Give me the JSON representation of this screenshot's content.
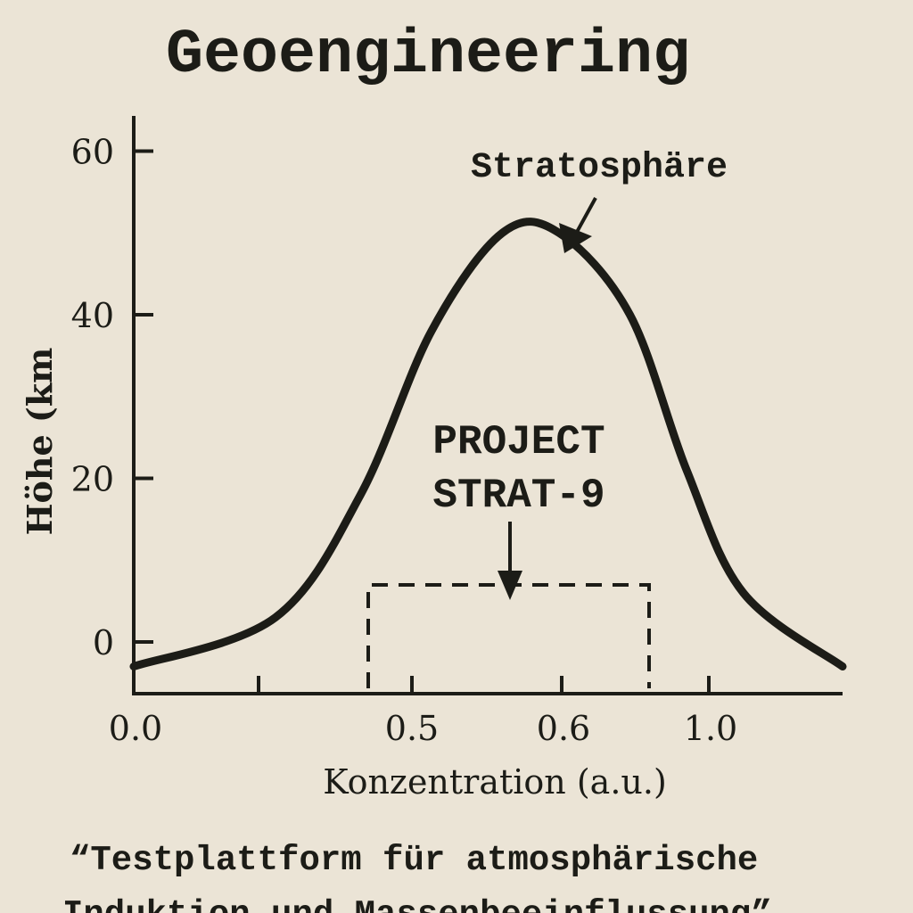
{
  "chart_data": {
    "type": "line",
    "title": "Geoengineering",
    "xlabel": "Konzentration (a.u.)",
    "ylabel": "Höhe (km",
    "x_tick_labels": [
      "0.0",
      "0.5",
      "0.6",
      "1.0"
    ],
    "y_ticks": [
      0,
      20,
      40,
      60
    ],
    "ylim": [
      -6,
      66
    ],
    "series": [
      {
        "points": [
          {
            "x": 0.0,
            "y": -3
          },
          {
            "x": 0.2,
            "y": 3
          },
          {
            "x": 0.32,
            "y": 18
          },
          {
            "x": 0.42,
            "y": 38
          },
          {
            "x": 0.52,
            "y": 50
          },
          {
            "x": 0.6,
            "y": 50
          },
          {
            "x": 0.7,
            "y": 40
          },
          {
            "x": 0.78,
            "y": 21
          },
          {
            "x": 0.86,
            "y": 6
          },
          {
            "x": 1.0,
            "y": -3
          }
        ]
      }
    ],
    "annotations": [
      {
        "text": "Stratosphäre",
        "arrow": true
      },
      {
        "text": "PROJECT STRAT-9",
        "arrow": true,
        "box": "dashed"
      }
    ],
    "caption": "“Testplattform für atmosphärische Induktion und Massenbeeinflussung”",
    "grid": false,
    "legend": "none"
  },
  "colors": {
    "background": "#ebe4d6",
    "ink": "#1c1c17"
  }
}
